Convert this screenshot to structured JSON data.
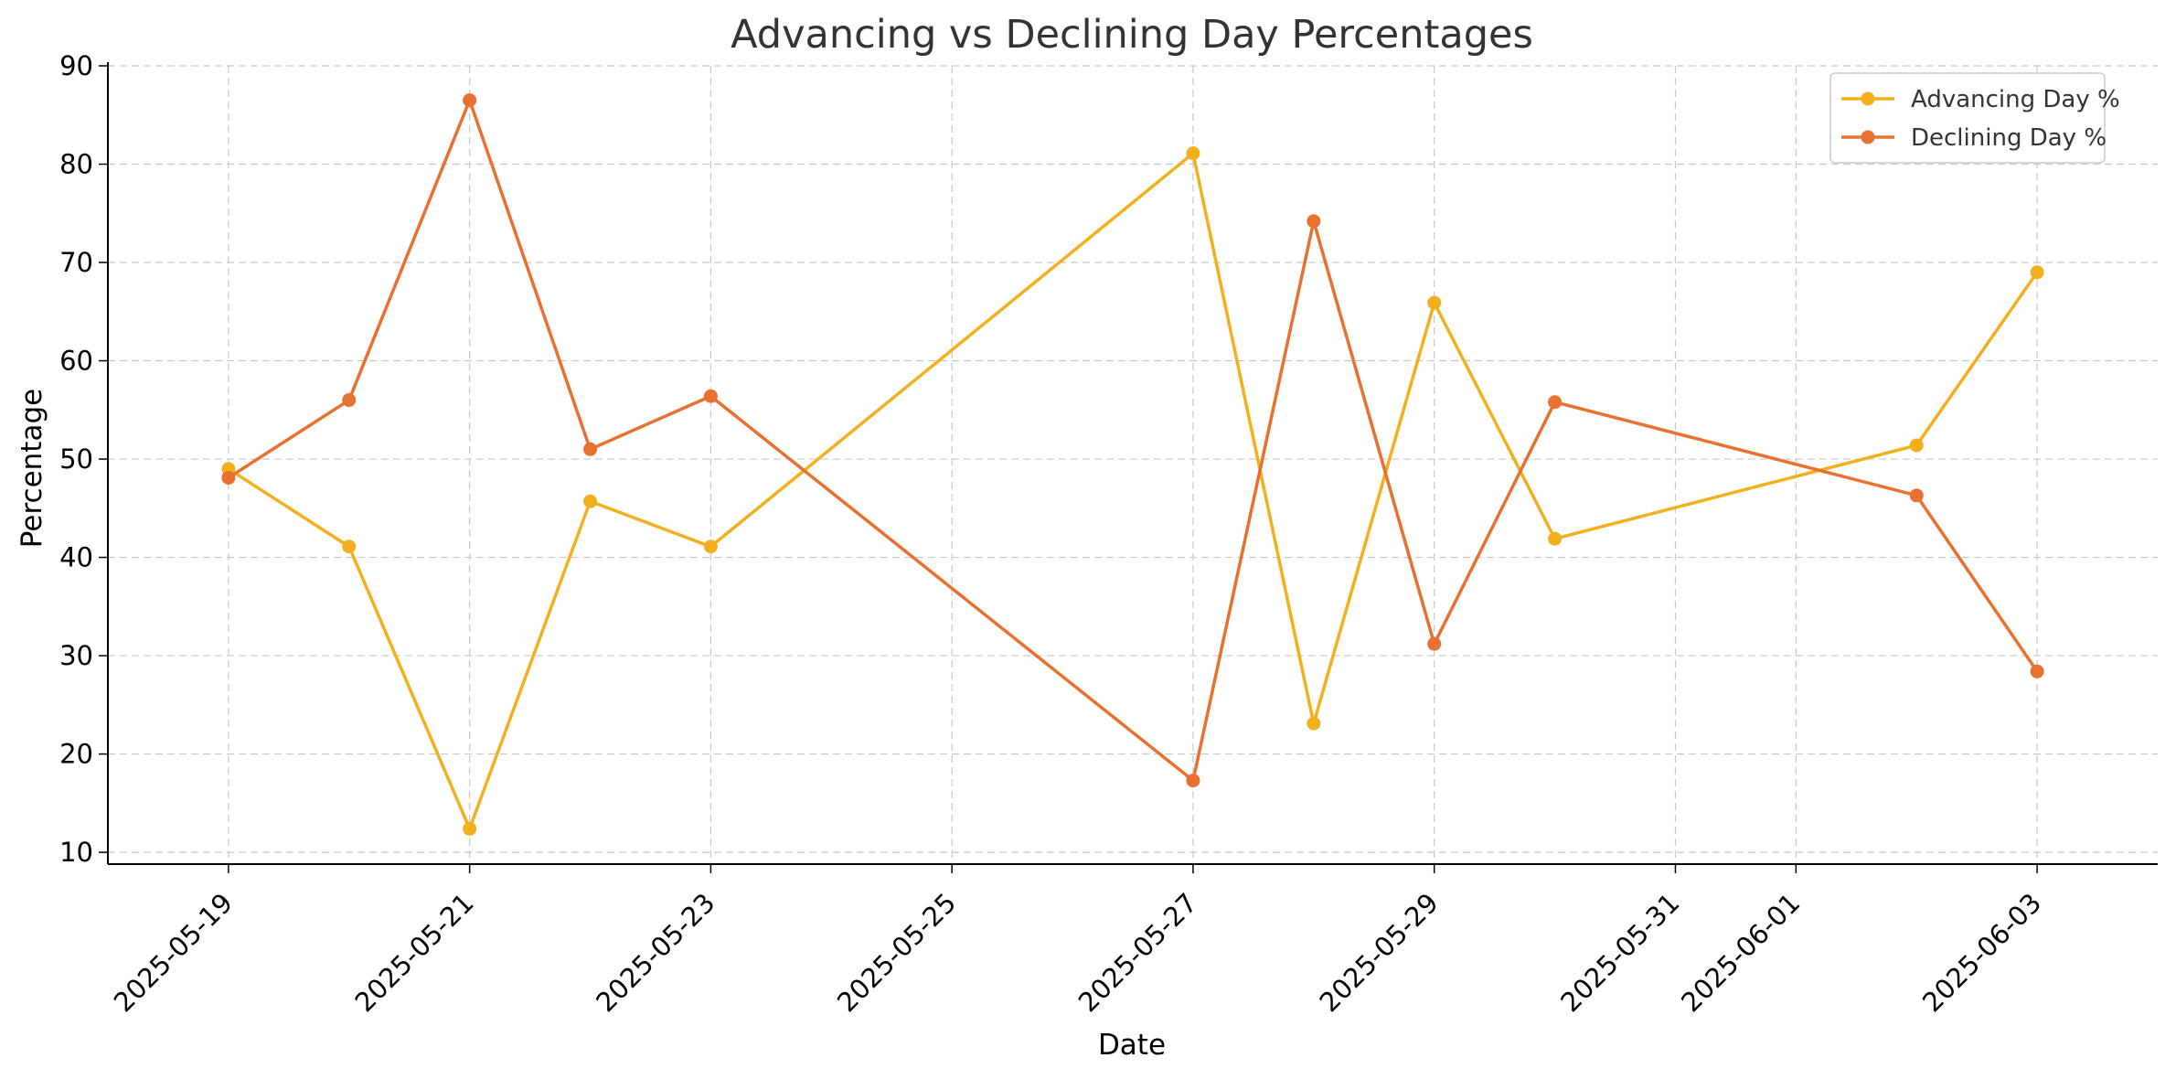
{
  "chart_data": {
    "type": "line",
    "title": "Advancing vs Declining Day Percentages",
    "xlabel": "Date",
    "ylabel": "Percentage",
    "ylim": [
      8.8,
      90
    ],
    "yticks": [
      10,
      20,
      30,
      40,
      50,
      60,
      70,
      80,
      90
    ],
    "xlim": [
      "2025-05-18",
      "2025-06-04"
    ],
    "xticks": [
      "2025-05-19",
      "2025-05-21",
      "2025-05-23",
      "2025-05-25",
      "2025-05-27",
      "2025-05-29",
      "2025-05-31",
      "2025-06-01",
      "2025-06-03"
    ],
    "grid": true,
    "legend_position": "top-right",
    "x": [
      "2025-05-19",
      "2025-05-20",
      "2025-05-21",
      "2025-05-22",
      "2025-05-23",
      "2025-05-27",
      "2025-05-28",
      "2025-05-29",
      "2025-05-30",
      "2025-06-02",
      "2025-06-03"
    ],
    "series": [
      {
        "name": "Advancing Day %",
        "color": "#f2b01e",
        "values": [
          49.0,
          41.1,
          12.4,
          45.7,
          41.1,
          81.1,
          23.1,
          65.9,
          41.9,
          51.4,
          69.0
        ]
      },
      {
        "name": "Declining Day %",
        "color": "#e8712f",
        "values": [
          48.1,
          56.0,
          86.5,
          51.0,
          56.4,
          17.3,
          74.2,
          31.2,
          55.8,
          46.3,
          28.4
        ]
      }
    ]
  }
}
